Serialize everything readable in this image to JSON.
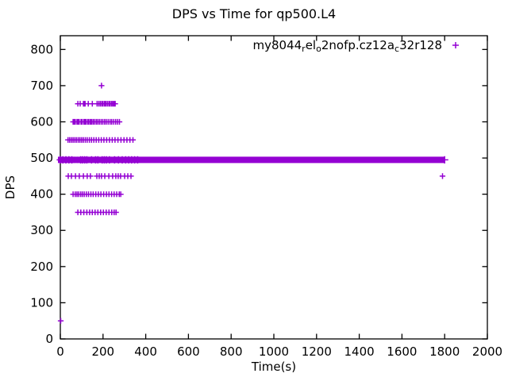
{
  "chart_data": {
    "type": "scatter",
    "title": "DPS vs Time for qp500.L4",
    "xlabel": "Time(s)",
    "ylabel": "DPS",
    "xlim": [
      0,
      2000
    ],
    "ylim": [
      0,
      838
    ],
    "xticks": [
      0,
      200,
      400,
      600,
      800,
      1000,
      1200,
      1400,
      1600,
      1800,
      2000
    ],
    "yticks": [
      0,
      100,
      200,
      300,
      400,
      500,
      600,
      700,
      800
    ],
    "grid": false,
    "legend_position": "top-right-inside",
    "marker": "plus",
    "marker_color": "#9400D3",
    "axis_color": "#000000",
    "series_label_segments": [
      {
        "text": "my8044"
      },
      {
        "text": "r",
        "sub": true
      },
      {
        "text": "el"
      },
      {
        "text": "o",
        "sub": true
      },
      {
        "text": "2nofp.cz12a"
      },
      {
        "text": "c",
        "sub": true
      },
      {
        "text": "32r128"
      }
    ],
    "band": {
      "y": 495,
      "x_start": 0,
      "x_end": 1800,
      "gaps": [
        [
          68,
          76
        ],
        [
          82,
          90
        ],
        [
          134,
          142
        ],
        [
          150,
          160
        ],
        [
          180,
          188
        ],
        [
          242,
          250
        ],
        [
          262,
          268
        ]
      ],
      "texture_x": [
        0,
        12,
        26,
        40,
        54,
        95,
        104,
        114,
        124,
        146,
        165,
        176,
        196,
        206,
        216,
        230,
        254,
        272,
        290,
        306,
        320,
        334,
        348,
        362,
        1800
      ]
    },
    "rows": [
      {
        "y": 700,
        "x": [
          193
        ]
      },
      {
        "y": 650,
        "x": [
          82,
          93,
          108,
          112,
          116,
          131,
          150,
          172,
          180,
          187,
          194,
          200,
          207,
          213,
          220,
          227,
          233,
          240,
          246,
          252,
          257
        ]
      },
      {
        "y": 600,
        "x": [
          60,
          65,
          70,
          78,
          83,
          88,
          97,
          102,
          110,
          115,
          120,
          128,
          133,
          140,
          146,
          153,
          160,
          168,
          175,
          183,
          191,
          199,
          207,
          215,
          224,
          233,
          241,
          250,
          259,
          268,
          277
        ]
      },
      {
        "y": 550,
        "x": [
          36,
          44,
          52,
          60,
          68,
          76,
          84,
          92,
          100,
          108,
          117,
          126,
          136,
          146,
          157,
          168,
          180,
          192,
          204,
          217,
          230,
          243,
          256,
          270,
          284,
          298,
          312,
          326,
          340
        ]
      },
      {
        "y": 450,
        "x": [
          37,
          52,
          71,
          89,
          108,
          126,
          141,
          171,
          182,
          193,
          208,
          227,
          245,
          260,
          271,
          282,
          301,
          316,
          331,
          1790
        ]
      },
      {
        "y": 400,
        "x": [
          60,
          70,
          78,
          86,
          95,
          103,
          112,
          122,
          132,
          143,
          154,
          166,
          178,
          190,
          203,
          216,
          228,
          240,
          252,
          264,
          276,
          283
        ]
      },
      {
        "y": 350,
        "x": [
          82,
          96,
          110,
          124,
          137,
          150,
          163,
          176,
          189,
          202,
          215,
          228,
          241,
          252,
          261
        ]
      },
      {
        "y": 50,
        "x": [
          2
        ]
      }
    ]
  }
}
